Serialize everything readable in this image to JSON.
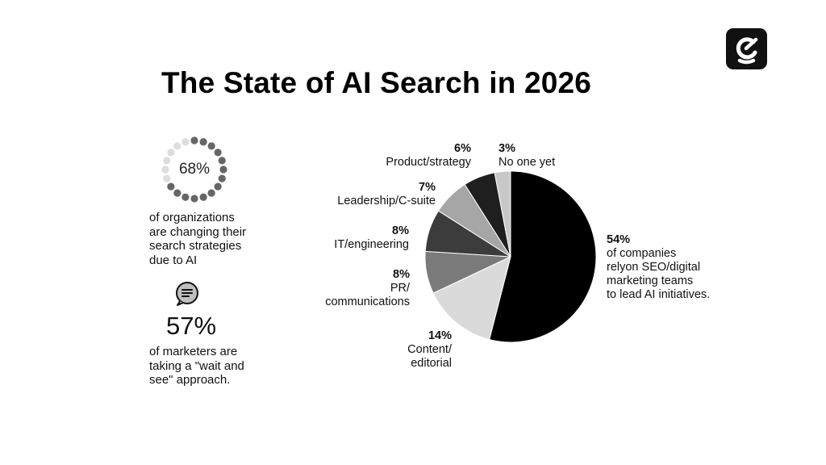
{
  "title": "The State of AI Search in 2026",
  "stat_ring": {
    "value": "68%",
    "fraction": 0.68,
    "lines": [
      "of organizations",
      "are changing their",
      "search strategies",
      "due to AI"
    ]
  },
  "stat_chat": {
    "value": "57%",
    "lines": [
      "of marketers are",
      "taking a \"wait and",
      "see\" approach."
    ]
  },
  "colors": {
    "dark": "#111111",
    "ring_on": "#666666",
    "ring_off": "#dddddd"
  },
  "chart_data": {
    "type": "pie",
    "slices": [
      {
        "value": 54,
        "label": "54%",
        "lines": [
          "of companies",
          "relyon SEO/digital",
          "marketing teams",
          "to lead AI initiatives."
        ],
        "color": "#000000"
      },
      {
        "value": 14,
        "label": "14%",
        "lines": [
          "Content/",
          "editorial"
        ],
        "color": "#dadada"
      },
      {
        "value": 8,
        "label": "8%",
        "lines": [
          "PR/",
          "communications"
        ],
        "color": "#7a7a7a"
      },
      {
        "value": 8,
        "label": "8%",
        "lines": [
          "IT/engineering"
        ],
        "color": "#3c3c3c"
      },
      {
        "value": 7,
        "label": "7%",
        "lines": [
          "Leadership/C-suite"
        ],
        "color": "#a6a6a6"
      },
      {
        "value": 6,
        "label": "6%",
        "lines": [
          "Product/strategy"
        ],
        "color": "#1f1f1f"
      },
      {
        "value": 3,
        "label": "3%",
        "lines": [
          "No one yet"
        ],
        "color": "#c8c8c8"
      }
    ]
  }
}
